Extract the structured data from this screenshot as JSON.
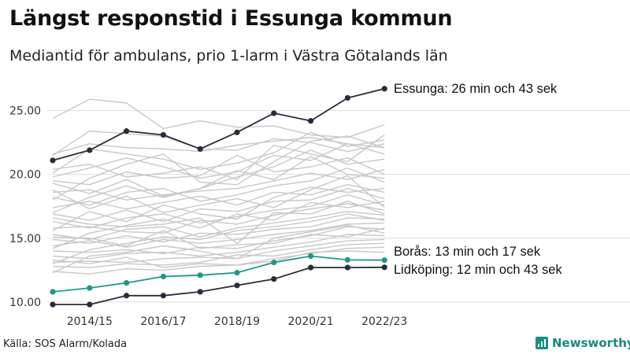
{
  "title": "Längst responstid i Essunga kommun",
  "subtitle": "Mediantid för ambulans, prio 1-larm i Västra Götalands län",
  "source": "Källa: SOS Alarm/Kolada",
  "brand": {
    "name": "Newsworthy",
    "icon": "bar-chart-logo-icon"
  },
  "colors": {
    "highlight_dark": "#2b2b3c",
    "highlight_teal": "#1f9987",
    "background_lines": "#c8c8c8",
    "grid": "#dddddd"
  },
  "chart_data": {
    "type": "line",
    "x": [
      "2013/14",
      "2014/15",
      "2015/16",
      "2016/17",
      "2017/18",
      "2018/19",
      "2019/20",
      "2020/21",
      "2021/22",
      "2022/23"
    ],
    "x_tick_labels": [
      "2014/15",
      "2016/17",
      "2018/19",
      "2020/21",
      "2022/23"
    ],
    "ylim": [
      9.5,
      27.2
    ],
    "y_ticks": [
      "10.00",
      "15.00",
      "20.00",
      "25.00"
    ],
    "grid": "horizontal",
    "highlighted": [
      {
        "name": "Essunga",
        "label": "Essunga: 26 min och 43 sek",
        "color": "#2b2b3c",
        "values": [
          21.1,
          21.9,
          23.4,
          23.1,
          22.0,
          23.3,
          24.8,
          24.2,
          26.0,
          26.72
        ]
      },
      {
        "name": "Borås",
        "label": "Borås: 13 min och 17 sek",
        "color": "#1f9987",
        "values": [
          10.8,
          11.1,
          11.5,
          12.0,
          12.1,
          12.3,
          13.1,
          13.6,
          13.3,
          13.28
        ]
      },
      {
        "name": "Lidköping",
        "label": "Lidköping: 12 min och 43 sek",
        "color": "#2b2b3c",
        "values": [
          9.8,
          9.8,
          10.5,
          10.5,
          10.8,
          11.3,
          11.8,
          12.7,
          12.7,
          12.72
        ]
      }
    ],
    "other_series": [
      [
        24.4,
        25.9,
        25.6,
        23.6,
        24.2,
        23.7,
        23.8,
        23.1,
        22.9,
        23.9
      ],
      [
        21.6,
        22.4,
        22.1,
        22.0,
        21.8,
        22.3,
        22.6,
        22.9,
        22.4,
        22.1
      ],
      [
        21.5,
        23.4,
        23.2,
        23.0,
        22.0,
        21.9,
        22.8,
        22.5,
        21.8,
        22.4
      ],
      [
        20.1,
        22.0,
        21.6,
        21.2,
        20.4,
        20.9,
        21.7,
        23.3,
        22.2,
        22.7
      ],
      [
        19.8,
        20.5,
        21.3,
        20.6,
        19.7,
        20.2,
        21.5,
        21.1,
        22.4,
        21.6
      ],
      [
        19.5,
        19.2,
        20.2,
        19.7,
        19.9,
        21.5,
        20.2,
        20.6,
        21.3,
        20.0
      ],
      [
        19.3,
        18.5,
        19.6,
        18.3,
        18.9,
        19.8,
        20.6,
        21.9,
        20.8,
        21.2
      ],
      [
        18.6,
        18.8,
        18.0,
        18.4,
        18.7,
        18.9,
        19.5,
        20.1,
        19.6,
        20.4
      ],
      [
        18.2,
        17.6,
        18.6,
        18.9,
        17.9,
        18.4,
        19.1,
        19.5,
        20.5,
        19.4
      ],
      [
        17.4,
        17.9,
        17.3,
        17.8,
        18.3,
        17.6,
        18.6,
        18.4,
        19.2,
        18.6
      ],
      [
        16.9,
        16.4,
        17.2,
        16.3,
        17.3,
        17.1,
        17.9,
        18.0,
        18.9,
        18.1
      ],
      [
        16.3,
        15.8,
        16.6,
        16.9,
        16.2,
        16.7,
        17.2,
        17.5,
        18.4,
        17.6
      ],
      [
        15.8,
        15.9,
        15.5,
        15.4,
        16.4,
        16.1,
        16.8,
        17.3,
        17.7,
        17.2
      ],
      [
        15.3,
        14.9,
        15.7,
        15.9,
        15.1,
        15.8,
        16.2,
        16.6,
        17.1,
        16.8
      ],
      [
        14.9,
        14.6,
        15.2,
        14.7,
        15.4,
        15.3,
        15.7,
        15.9,
        16.6,
        16.5
      ],
      [
        14.4,
        14.8,
        14.3,
        14.9,
        14.6,
        14.9,
        15.3,
        15.6,
        16.1,
        16.2
      ],
      [
        14.0,
        13.9,
        14.1,
        13.8,
        14.3,
        14.2,
        14.8,
        15.2,
        15.9,
        15.7
      ],
      [
        13.6,
        13.4,
        13.8,
        13.9,
        13.6,
        13.9,
        14.3,
        14.7,
        15.3,
        15.2
      ],
      [
        13.1,
        13.2,
        13.1,
        13.4,
        13.5,
        13.4,
        14.0,
        14.4,
        14.8,
        14.9
      ],
      [
        12.8,
        12.7,
        13.0,
        12.9,
        13.1,
        13.7,
        13.6,
        14.1,
        14.5,
        14.6
      ],
      [
        12.4,
        12.2,
        12.6,
        12.5,
        12.8,
        12.9,
        13.4,
        13.8,
        14.2,
        14.3
      ],
      [
        18.0,
        19.7,
        20.8,
        21.6,
        19.4,
        19.2,
        21.0,
        22.6,
        23.0,
        22.1
      ],
      [
        17.0,
        18.2,
        19.1,
        18.2,
        18.9,
        20.3,
        19.6,
        21.4,
        20.0,
        19.7
      ],
      [
        15.6,
        17.1,
        16.3,
        17.6,
        16.9,
        16.5,
        18.2,
        19.0,
        18.6,
        18.9
      ],
      [
        14.2,
        15.4,
        16.0,
        16.5,
        15.8,
        16.9,
        16.4,
        17.8,
        17.4,
        17.9
      ],
      [
        13.0,
        14.1,
        14.6,
        15.1,
        14.9,
        15.6,
        15.9,
        16.3,
        16.9,
        16.4
      ],
      [
        12.3,
        13.6,
        13.9,
        14.4,
        14.0,
        13.4,
        15.0,
        15.5,
        16.0,
        15.4
      ],
      [
        20.4,
        20.8,
        19.8,
        20.1,
        20.6,
        19.6,
        22.3,
        21.6,
        21.0,
        23.1
      ],
      [
        18.8,
        17.3,
        18.3,
        17.0,
        17.6,
        18.1,
        17.4,
        18.8,
        19.9,
        17.4
      ],
      [
        16.6,
        16.1,
        15.9,
        16.1,
        16.6,
        14.6,
        17.0,
        16.9,
        17.9,
        16.9
      ],
      [
        15.1,
        15.0,
        14.4,
        15.6,
        14.2,
        14.5,
        14.6,
        15.3,
        15.1,
        15.8
      ],
      [
        13.3,
        13.0,
        13.5,
        12.7,
        13.0,
        12.9,
        13.2,
        13.9,
        14.0,
        13.9
      ]
    ]
  }
}
